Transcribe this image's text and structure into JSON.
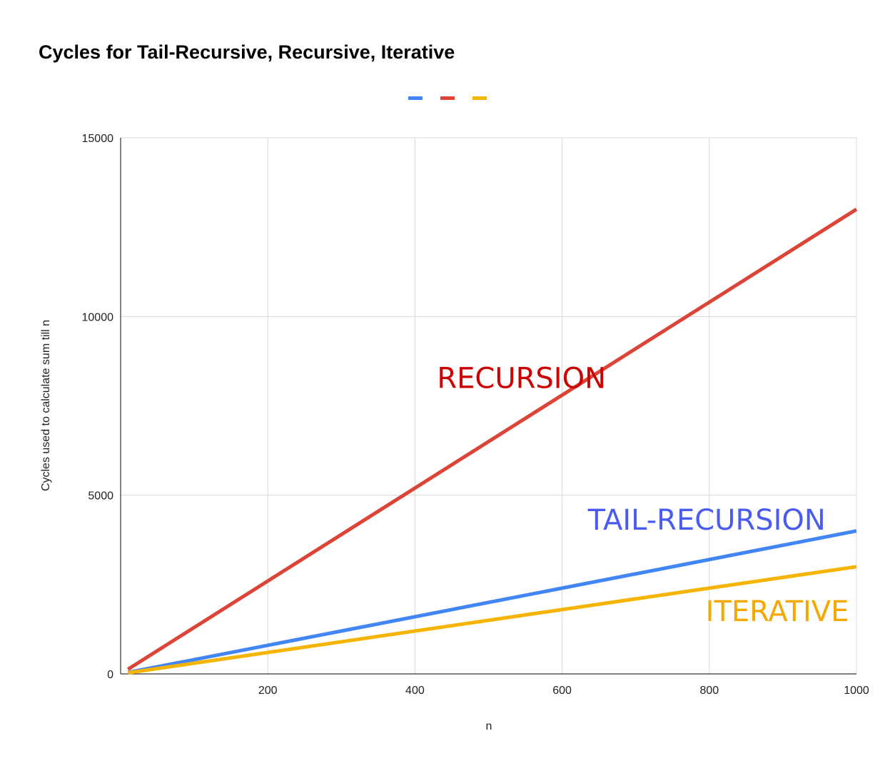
{
  "chart_data": {
    "type": "line",
    "title": "Cycles for Tail-Recursive, Recursive, Iterative",
    "xlabel": "n",
    "ylabel": "Cycles used to calculate sum till n",
    "xlim": [
      10,
      1000
    ],
    "ylim": [
      0,
      15000
    ],
    "x_ticks": [
      "200",
      "400",
      "600",
      "800",
      "1000"
    ],
    "y_ticks": [
      "0",
      "5000",
      "10000",
      "15000"
    ],
    "grid": true,
    "legend_position": "top-center",
    "x": [
      10,
      1000
    ],
    "series": [
      {
        "color": "#4285F4",
        "values": [
          40,
          4000
        ]
      },
      {
        "color": "#DB4437",
        "values": [
          130,
          13000
        ]
      },
      {
        "color": "#F4B400",
        "values": [
          30,
          3000
        ]
      }
    ],
    "annotations": [
      {
        "text": "RECURSION",
        "color": "#CC0000",
        "x": 430,
        "y": 8000
      },
      {
        "text": "TAIL-RECURSION",
        "color": "#4A5CF0",
        "x": 635,
        "y": 4030
      },
      {
        "text": "ITERATIVE",
        "color": "#F4A800",
        "x": 795,
        "y": 1480
      }
    ]
  }
}
